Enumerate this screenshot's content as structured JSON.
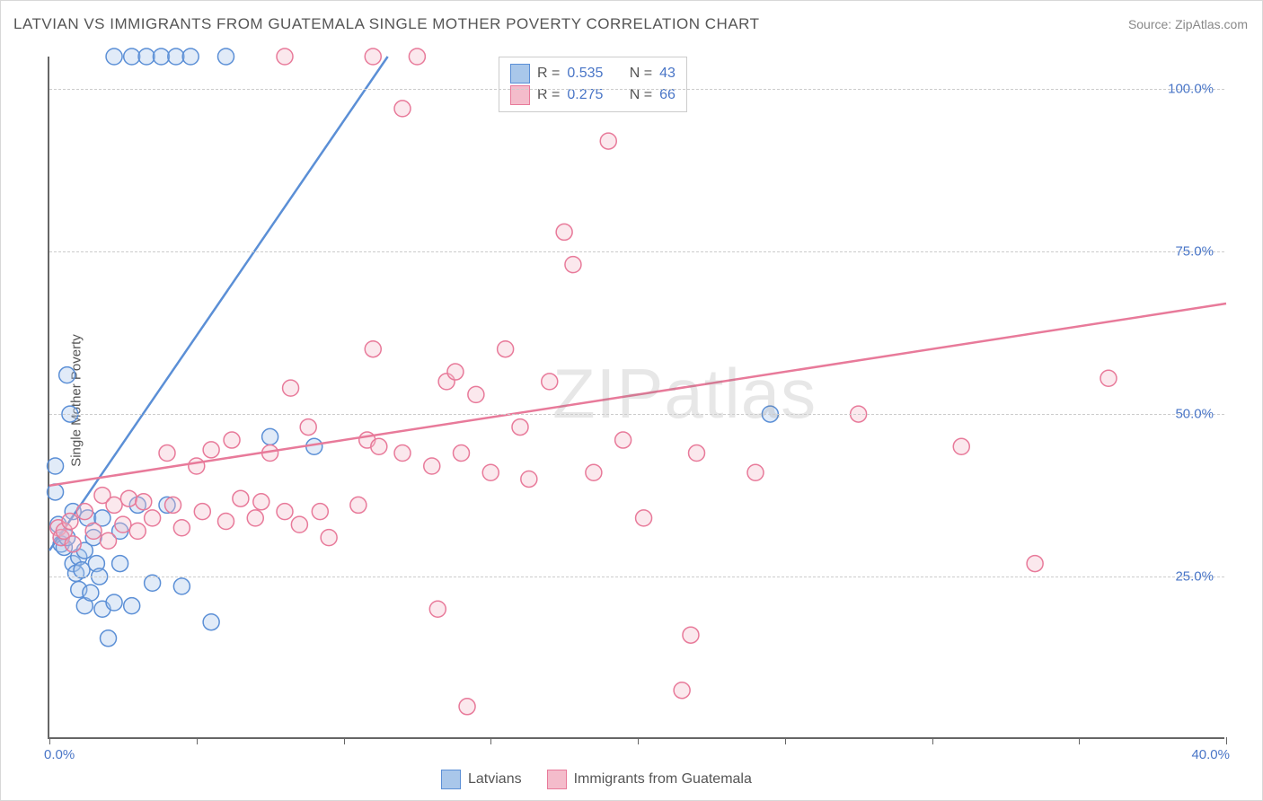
{
  "title": "LATVIAN VS IMMIGRANTS FROM GUATEMALA SINGLE MOTHER POVERTY CORRELATION CHART",
  "source": "Source: ZipAtlas.com",
  "y_axis_label": "Single Mother Poverty",
  "watermark": "ZIPatlas",
  "chart": {
    "type": "scatter",
    "xlim": [
      0.0,
      40.0
    ],
    "ylim": [
      0.0,
      105.0
    ],
    "x_ticks": [
      0.0,
      5.0,
      10.0,
      15.0,
      20.0,
      25.0,
      30.0,
      35.0,
      40.0
    ],
    "x_tick_labels": {
      "0": "0.0%",
      "40": "40.0%"
    },
    "y_gridlines": [
      25.0,
      50.0,
      75.0,
      100.0
    ],
    "y_tick_labels": {
      "25": "25.0%",
      "50": "50.0%",
      "75": "75.0%",
      "100": "100.0%"
    },
    "background_color": "#ffffff",
    "grid_color": "#cccccc",
    "axis_color": "#666666",
    "marker_radius": 9,
    "marker_stroke_width": 1.5,
    "marker_fill_opacity": 0.35,
    "line_width": 2.5
  },
  "series": [
    {
      "id": "latvians",
      "label": "Latvians",
      "color_stroke": "#5b8fd6",
      "color_fill": "#a9c7ea",
      "r_value": "0.535",
      "n_value": "43",
      "regression": {
        "x1": 0.0,
        "y1": 29.0,
        "x2": 11.5,
        "y2": 105.0
      },
      "points": [
        [
          0.2,
          42.0
        ],
        [
          0.2,
          38.0
        ],
        [
          0.3,
          33.0
        ],
        [
          0.4,
          31.0
        ],
        [
          0.4,
          30.0
        ],
        [
          0.5,
          29.5
        ],
        [
          0.6,
          31.0
        ],
        [
          0.6,
          56.0
        ],
        [
          0.7,
          50.0
        ],
        [
          0.8,
          35.0
        ],
        [
          0.8,
          27.0
        ],
        [
          0.9,
          25.5
        ],
        [
          1.0,
          28.0
        ],
        [
          1.0,
          23.0
        ],
        [
          1.1,
          26.0
        ],
        [
          1.2,
          29.0
        ],
        [
          1.2,
          20.5
        ],
        [
          1.3,
          34.0
        ],
        [
          1.4,
          22.5
        ],
        [
          1.5,
          31.0
        ],
        [
          1.6,
          27.0
        ],
        [
          1.7,
          25.0
        ],
        [
          1.8,
          20.0
        ],
        [
          1.8,
          34.0
        ],
        [
          2.0,
          15.5
        ],
        [
          2.2,
          21.0
        ],
        [
          2.4,
          27.0
        ],
        [
          2.4,
          32.0
        ],
        [
          2.8,
          20.5
        ],
        [
          3.0,
          36.0
        ],
        [
          3.5,
          24.0
        ],
        [
          4.0,
          36.0
        ],
        [
          4.5,
          23.5
        ],
        [
          5.5,
          18.0
        ],
        [
          7.5,
          46.5
        ],
        [
          9.0,
          45.0
        ],
        [
          2.2,
          105.0
        ],
        [
          2.8,
          105.0
        ],
        [
          3.3,
          105.0
        ],
        [
          3.8,
          105.0
        ],
        [
          4.3,
          105.0
        ],
        [
          4.8,
          105.0
        ],
        [
          6.0,
          105.0
        ],
        [
          24.5,
          50.0
        ]
      ]
    },
    {
      "id": "guatemala",
      "label": "Immigrants from Guatemala",
      "color_stroke": "#e87a9a",
      "color_fill": "#f4bccb",
      "r_value": "0.275",
      "n_value": "66",
      "regression": {
        "x1": 0.0,
        "y1": 39.0,
        "x2": 40.0,
        "y2": 67.0
      },
      "points": [
        [
          0.3,
          32.5
        ],
        [
          0.4,
          31.0
        ],
        [
          0.5,
          32.0
        ],
        [
          0.7,
          33.5
        ],
        [
          0.8,
          30.0
        ],
        [
          1.2,
          35.0
        ],
        [
          1.5,
          32.0
        ],
        [
          1.8,
          37.5
        ],
        [
          2.0,
          30.5
        ],
        [
          2.2,
          36.0
        ],
        [
          2.5,
          33.0
        ],
        [
          2.7,
          37.0
        ],
        [
          3.0,
          32.0
        ],
        [
          3.2,
          36.5
        ],
        [
          3.5,
          34.0
        ],
        [
          4.0,
          44.0
        ],
        [
          4.2,
          36.0
        ],
        [
          4.5,
          32.5
        ],
        [
          5.0,
          42.0
        ],
        [
          5.2,
          35.0
        ],
        [
          5.5,
          44.5
        ],
        [
          6.0,
          33.5
        ],
        [
          6.2,
          46.0
        ],
        [
          6.5,
          37.0
        ],
        [
          7.0,
          34.0
        ],
        [
          7.2,
          36.5
        ],
        [
          7.5,
          44.0
        ],
        [
          8.0,
          35.0
        ],
        [
          8.2,
          54.0
        ],
        [
          8.5,
          33.0
        ],
        [
          8.8,
          48.0
        ],
        [
          9.2,
          35.0
        ],
        [
          9.5,
          31.0
        ],
        [
          10.5,
          36.0
        ],
        [
          10.8,
          46.0
        ],
        [
          11.0,
          60.0
        ],
        [
          11.2,
          45.0
        ],
        [
          12.0,
          44.0
        ],
        [
          12.0,
          97.0
        ],
        [
          13.0,
          42.0
        ],
        [
          13.2,
          20.0
        ],
        [
          13.5,
          55.0
        ],
        [
          13.8,
          56.5
        ],
        [
          14.0,
          44.0
        ],
        [
          14.2,
          5.0
        ],
        [
          14.5,
          53.0
        ],
        [
          15.0,
          41.0
        ],
        [
          15.5,
          60.0
        ],
        [
          16.0,
          48.0
        ],
        [
          16.3,
          40.0
        ],
        [
          17.0,
          55.0
        ],
        [
          17.5,
          78.0
        ],
        [
          17.8,
          73.0
        ],
        [
          18.5,
          41.0
        ],
        [
          19.0,
          92.0
        ],
        [
          19.5,
          46.0
        ],
        [
          20.2,
          34.0
        ],
        [
          21.5,
          7.5
        ],
        [
          21.8,
          16.0
        ],
        [
          22.0,
          44.0
        ],
        [
          24.0,
          41.0
        ],
        [
          27.5,
          50.0
        ],
        [
          31.0,
          45.0
        ],
        [
          33.5,
          27.0
        ],
        [
          36.0,
          55.5
        ],
        [
          8.0,
          105.0
        ],
        [
          11.0,
          105.0
        ],
        [
          12.5,
          105.0
        ]
      ]
    }
  ],
  "legend_top": {
    "r_label": "R =",
    "n_label": "N ="
  },
  "legend_bottom": {
    "items": [
      "latvians",
      "guatemala"
    ]
  }
}
